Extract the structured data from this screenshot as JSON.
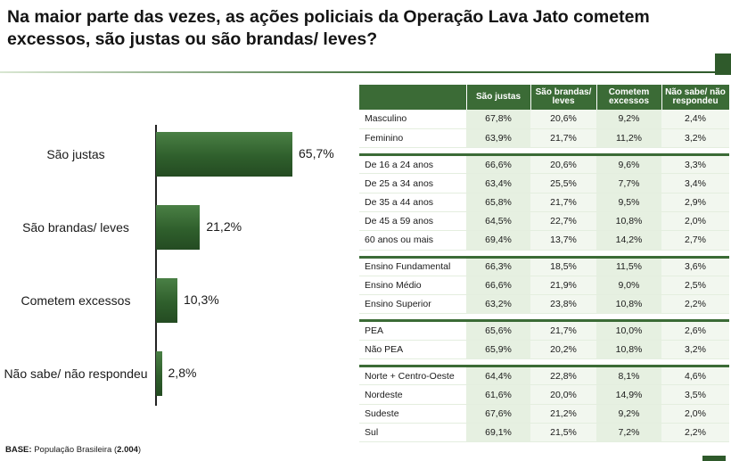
{
  "title": "Na maior parte das vezes, as ações policiais da Operação Lava Jato cometem excessos, são justas ou são brandas/ leves?",
  "chart_data": [
    {
      "type": "bar",
      "orientation": "horizontal",
      "categories": [
        "São justas",
        "São brandas/ leves",
        "Cometem excessos",
        "Não sabe/ não respondeu"
      ],
      "values": [
        65.7,
        21.2,
        10.3,
        2.8
      ],
      "value_labels": [
        "65,7%",
        "21,2%",
        "10,3%",
        "2,8%"
      ],
      "unit": "%",
      "xlim": [
        0,
        100
      ],
      "bar_color": "#3b6b36"
    },
    {
      "type": "table",
      "columns": [
        "São justas",
        "São brandas/ leves",
        "Cometem excessos",
        "Não sabe/ não respondeu"
      ],
      "groups": [
        {
          "rows": [
            {
              "label": "Masculino",
              "values": [
                "67,8%",
                "20,6%",
                "9,2%",
                "2,4%"
              ]
            },
            {
              "label": "Feminino",
              "values": [
                "63,9%",
                "21,7%",
                "11,2%",
                "3,2%"
              ]
            }
          ]
        },
        {
          "rows": [
            {
              "label": "De 16 a 24 anos",
              "values": [
                "66,6%",
                "20,6%",
                "9,6%",
                "3,3%"
              ]
            },
            {
              "label": "De 25 a 34 anos",
              "values": [
                "63,4%",
                "25,5%",
                "7,7%",
                "3,4%"
              ]
            },
            {
              "label": "De 35 a 44 anos",
              "values": [
                "65,8%",
                "21,7%",
                "9,5%",
                "2,9%"
              ]
            },
            {
              "label": "De 45 a 59 anos",
              "values": [
                "64,5%",
                "22,7%",
                "10,8%",
                "2,0%"
              ]
            },
            {
              "label": "60 anos ou mais",
              "values": [
                "69,4%",
                "13,7%",
                "14,2%",
                "2,7%"
              ]
            }
          ]
        },
        {
          "rows": [
            {
              "label": "Ensino Fundamental",
              "values": [
                "66,3%",
                "18,5%",
                "11,5%",
                "3,6%"
              ]
            },
            {
              "label": "Ensino Médio",
              "values": [
                "66,6%",
                "21,9%",
                "9,0%",
                "2,5%"
              ]
            },
            {
              "label": "Ensino Superior",
              "values": [
                "63,2%",
                "23,8%",
                "10,8%",
                "2,2%"
              ]
            }
          ]
        },
        {
          "rows": [
            {
              "label": "PEA",
              "values": [
                "65,6%",
                "21,7%",
                "10,0%",
                "2,6%"
              ]
            },
            {
              "label": "Não PEA",
              "values": [
                "65,9%",
                "20,2%",
                "10,8%",
                "3,2%"
              ]
            }
          ]
        },
        {
          "rows": [
            {
              "label": "Norte + Centro-Oeste",
              "values": [
                "64,4%",
                "22,8%",
                "8,1%",
                "4,6%"
              ]
            },
            {
              "label": "Nordeste",
              "values": [
                "61,6%",
                "20,0%",
                "14,9%",
                "3,5%"
              ]
            },
            {
              "label": "Sudeste",
              "values": [
                "67,6%",
                "21,2%",
                "9,2%",
                "2,0%"
              ]
            },
            {
              "label": "Sul",
              "values": [
                "69,1%",
                "21,5%",
                "7,2%",
                "2,2%"
              ]
            }
          ]
        }
      ]
    }
  ],
  "footer": {
    "base_label": "BASE:",
    "base_text": " População Brasileira (",
    "base_n": "2.004",
    "base_close": ")"
  },
  "colors": {
    "accent": "#3b6b36",
    "cell_light": "#e6f0e1"
  }
}
